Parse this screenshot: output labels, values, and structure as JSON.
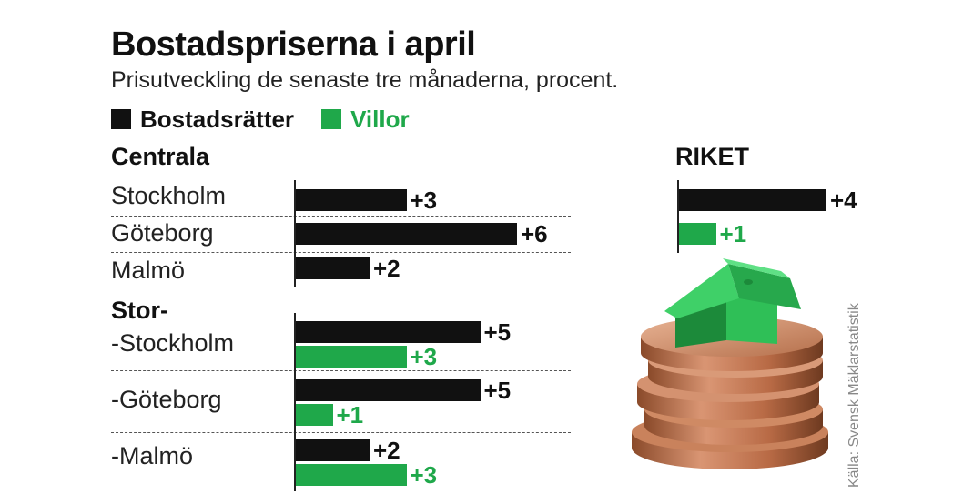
{
  "chart_data": {
    "type": "bar",
    "title": "Bostadspriserna i april",
    "subtitle": "Prisutveckling de senaste tre månaderna, procent.",
    "legend": [
      {
        "name": "Bostadsrätter",
        "color": "#111111"
      },
      {
        "name": "Villor",
        "color": "#1fa84a"
      }
    ],
    "colors": {
      "bostadsratter": "#111111",
      "villor": "#1fa84a"
    },
    "groups": [
      {
        "heading": "Centrala",
        "rows": [
          {
            "label": "Stockholm",
            "bostadsratter": 3,
            "bostadsratter_label": "+3"
          },
          {
            "label": "Göteborg",
            "bostadsratter": 6,
            "bostadsratter_label": "+6"
          },
          {
            "label": "Malmö",
            "bostadsratter": 2,
            "bostadsratter_label": "+2"
          }
        ]
      },
      {
        "heading": "Stor-",
        "rows": [
          {
            "label": "-Stockholm",
            "bostadsratter": 5,
            "bostadsratter_label": "+5",
            "villor": 3,
            "villor_label": "+3"
          },
          {
            "label": "-Göteborg",
            "bostadsratter": 5,
            "bostadsratter_label": "+5",
            "villor": 1,
            "villor_label": "+1"
          },
          {
            "label": "-Malmö",
            "bostadsratter": 2,
            "bostadsratter_label": "+2",
            "villor": 3,
            "villor_label": "+3"
          }
        ]
      }
    ],
    "riket": {
      "heading": "RIKET",
      "bostadsratter": 4,
      "bostadsratter_label": "+4",
      "villor": 1,
      "villor_label": "+1"
    },
    "source": "Källa: Svensk Mäklarstatistik"
  }
}
